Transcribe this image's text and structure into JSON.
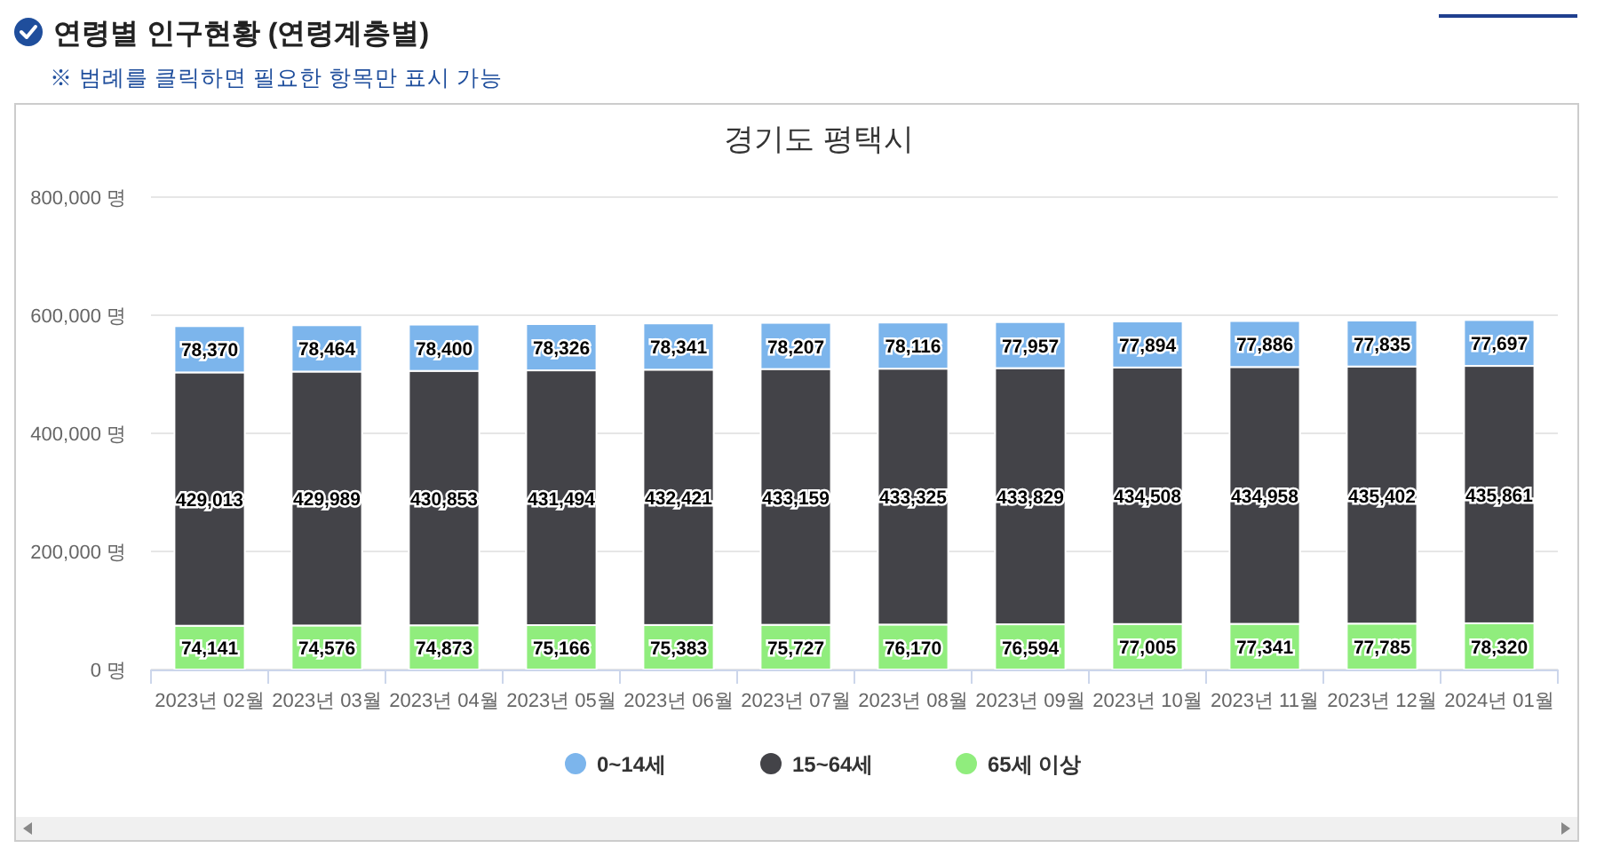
{
  "chart_data": {
    "type": "bar",
    "title": "연령별 인구현황 (연령계층별)",
    "subtitle": "경기도 평택시",
    "annotations": [
      "※ 범례를 클릭하면 필요한 항목만 표시 가능"
    ],
    "categories": [
      "2023년 02월",
      "2023년 03월",
      "2023년 04월",
      "2023년 05월",
      "2023년 06월",
      "2023년 07월",
      "2023년 08월",
      "2023년 09월",
      "2023년 10월",
      "2023년 11월",
      "2023년 12월",
      "2024년 01월"
    ],
    "stacked": true,
    "series": [
      {
        "name": "65세 이상",
        "color": "#90ed7d",
        "values": [
          74141,
          74576,
          74873,
          75166,
          75383,
          75727,
          76170,
          76594,
          77005,
          77341,
          77785,
          78320
        ],
        "value_labels": [
          "74,141",
          "74,576",
          "74,873",
          "75,166",
          "75,383",
          "75,727",
          "76,170",
          "76,594",
          "77,005",
          "77,341",
          "77,785",
          "78,320"
        ]
      },
      {
        "name": "15~64세",
        "color": "#434348",
        "values": [
          429013,
          429989,
          430853,
          431494,
          432421,
          433159,
          433325,
          433829,
          434508,
          434958,
          435402,
          435861
        ],
        "value_labels": [
          "429,013",
          "429,989",
          "430,853",
          "431,494",
          "432,421",
          "433,159",
          "433,325",
          "433,829",
          "434,508",
          "434,958",
          "435,402",
          "435,861"
        ]
      },
      {
        "name": "0~14세",
        "color": "#7cb5ec",
        "values": [
          78370,
          78464,
          78400,
          78326,
          78341,
          78207,
          78116,
          77957,
          77894,
          77886,
          77835,
          77697
        ],
        "value_labels": [
          "78,370",
          "78,464",
          "78,400",
          "78,326",
          "78,341",
          "78,207",
          "78,116",
          "77,957",
          "77,894",
          "77,886",
          "77,835",
          "77,697"
        ]
      }
    ],
    "ylim": [
      0,
      800000
    ],
    "yticks": [
      {
        "value": 0,
        "label": "0 명"
      },
      {
        "value": 200000,
        "label": "200,000 명"
      },
      {
        "value": 400000,
        "label": "400,000 명"
      },
      {
        "value": 600000,
        "label": "600,000 명"
      },
      {
        "value": 800000,
        "label": "800,000 명"
      }
    ],
    "grid": "y",
    "legend": "bottom"
  }
}
